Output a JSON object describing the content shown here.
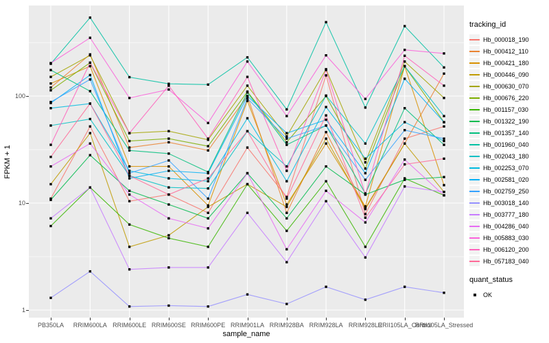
{
  "figure": {
    "background": "#FFFFFF",
    "panel_background": "#EBEBEB",
    "grid_color": "#FFFFFF",
    "tick_color": "#333333",
    "tick_label_color": "#4D4D4D",
    "marker_color": "#000000"
  },
  "axes": {
    "x_title": "sample_name",
    "y_title": "FPKM + 1"
  },
  "legend": {
    "tracking_title": "tracking_id",
    "quant_title": "quant_status",
    "quant_items": [
      {
        "label": "OK",
        "marker": "black-square"
      }
    ]
  },
  "chart_data": {
    "type": "line",
    "title": "",
    "xlabel": "sample_name",
    "ylabel": "FPKM + 1",
    "y_scale": "log10",
    "y_ticks": [
      1,
      10,
      100
    ],
    "y_minor_ticks": [
      3.16,
      31.6,
      316
    ],
    "ylim": [
      0.85,
      700
    ],
    "grid": true,
    "legend_position": "right",
    "point_marker": "black-square",
    "categories": [
      "PB350LA",
      "RRIM600LA",
      "RRIM600LE",
      "RRIM600SE",
      "RRIM600PE",
      "RRIM901LA",
      "RRIM928BA",
      "RRIM928LA",
      "RRIM928LE",
      "RRII105LA_Control",
      "RRII105LA_Stressed"
    ],
    "series": [
      {
        "name": "Hb_000018_190",
        "color": "#F8766D",
        "values": [
          11,
          52,
          10.4,
          12,
          8.1,
          33,
          11.4,
          156,
          7.9,
          40,
          52
        ]
      },
      {
        "name": "Hb_000412_110",
        "color": "#EA8331",
        "values": [
          120,
          245,
          33,
          37,
          31,
          100,
          8.1,
          46,
          9.0,
          36,
          162
        ]
      },
      {
        "name": "Hb_000421_180",
        "color": "#D89000",
        "values": [
          131,
          190,
          22,
          22,
          9.5,
          90,
          9.7,
          36,
          9.3,
          190,
          14.7
        ]
      },
      {
        "name": "Hb_000446_090",
        "color": "#C09B00",
        "values": [
          15,
          45,
          3.9,
          5.0,
          9.2,
          15,
          9.2,
          40,
          8.8,
          36,
          12.7
        ]
      },
      {
        "name": "Hb_000630_070",
        "color": "#A3A500",
        "values": [
          151,
          240,
          45,
          47,
          39,
          125,
          42,
          178,
          24,
          210,
          96
        ]
      },
      {
        "name": "Hb_000676_220",
        "color": "#7CAE00",
        "values": [
          113,
          205,
          38,
          40,
          34,
          110,
          37,
          100,
          21,
          190,
          57
        ]
      },
      {
        "name": "Hb_001157_030",
        "color": "#39B600",
        "values": [
          6.1,
          14,
          6.3,
          4.7,
          3.9,
          15,
          5.5,
          16,
          3.9,
          17,
          11.8
        ]
      },
      {
        "name": "Hb_001322_190",
        "color": "#00BB4E",
        "values": [
          10.7,
          28,
          13,
          9.7,
          7.2,
          19,
          7.2,
          22,
          12,
          16.5,
          17.5
        ]
      },
      {
        "name": "Hb_001357_140",
        "color": "#00BF7D",
        "values": [
          175,
          111,
          31,
          29,
          19.5,
          108,
          35,
          53,
          12.3,
          77,
          35
        ]
      },
      {
        "name": "Hb_001960_040",
        "color": "#00C1A3",
        "values": [
          200,
          540,
          150,
          130,
          128,
          230,
          75,
          490,
          78,
          450,
          185
        ]
      },
      {
        "name": "Hb_002043_180",
        "color": "#00BFC4",
        "values": [
          53,
          61,
          18,
          14,
          13.7,
          47,
          22,
          101,
          36,
          190,
          65
        ]
      },
      {
        "name": "Hb_002253_070",
        "color": "#00BAE0",
        "values": [
          77,
          85,
          20,
          17,
          16,
          62,
          16,
          79,
          26,
          57,
          38
        ]
      },
      {
        "name": "Hb_002581_020",
        "color": "#00B0F6",
        "values": [
          86,
          157,
          17,
          20,
          19,
          100,
          45,
          60,
          19,
          145,
          57
        ]
      },
      {
        "name": "Hb_002759_250",
        "color": "#35A2FF",
        "values": [
          88,
          143,
          19,
          25,
          11,
          95,
          40,
          53,
          16.5,
          48,
          40
        ]
      },
      {
        "name": "Hb_003018_140",
        "color": "#9590FF",
        "values": [
          1.3,
          2.3,
          1.08,
          1.1,
          1.08,
          1.4,
          1.14,
          1.65,
          1.25,
          1.65,
          1.45
        ]
      },
      {
        "name": "Hb_003777_180",
        "color": "#C77CFF",
        "values": [
          7.2,
          14,
          2.4,
          2.5,
          2.5,
          8.1,
          2.8,
          10.4,
          3.1,
          14.3,
          12.7
        ]
      },
      {
        "name": "Hb_004286_040",
        "color": "#E76BF3",
        "values": [
          22,
          36,
          12,
          7.2,
          5.8,
          19,
          3.7,
          13,
          6.6,
          25.5,
          11.8
        ]
      },
      {
        "name": "Hb_005883_030",
        "color": "#FA62DB",
        "values": [
          203,
          350,
          96,
          115,
          56,
          210,
          65,
          240,
          94,
          270,
          250
        ]
      },
      {
        "name": "Hb_006120_200",
        "color": "#FF62BC",
        "values": [
          35,
          205,
          45,
          125,
          40,
          151,
          20,
          175,
          12,
          238,
          125
        ]
      },
      {
        "name": "Hb_057183_040",
        "color": "#FF6A98",
        "values": [
          27,
          85,
          18,
          12,
          17,
          47,
          11,
          66,
          7.3,
          23,
          26
        ]
      }
    ]
  }
}
